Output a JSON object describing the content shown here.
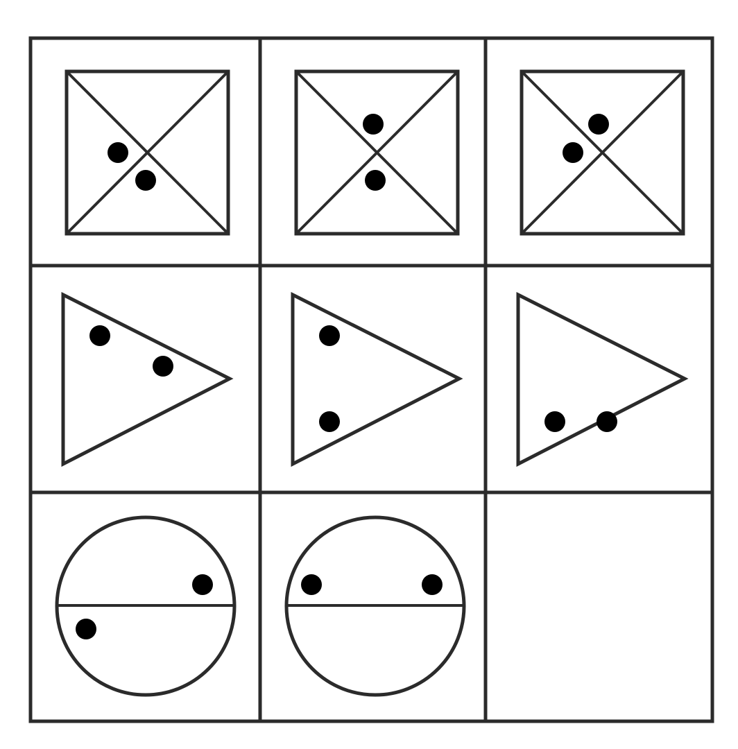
{
  "puzzle": {
    "rows": [
      {
        "shape": "square-with-diagonals",
        "cells": [
          {
            "dots": [
              "left-wedge",
              "bottom-wedge"
            ]
          },
          {
            "dots": [
              "top-wedge",
              "bottom-wedge"
            ]
          },
          {
            "dots": [
              "top-wedge",
              "left-wedge"
            ]
          }
        ]
      },
      {
        "shape": "right-pointing-triangle",
        "cells": [
          {
            "dots": [
              "upper-left",
              "upper-middle"
            ]
          },
          {
            "dots": [
              "upper-left",
              "lower-left"
            ]
          },
          {
            "dots": [
              "lower-middle",
              "lower-left"
            ]
          }
        ]
      },
      {
        "shape": "circle-with-horizontal-divider",
        "cells": [
          {
            "dots": [
              "upper-right",
              "lower-left"
            ]
          },
          {
            "dots": [
              "upper-left",
              "upper-right"
            ]
          },
          {
            "missing": true
          }
        ]
      }
    ]
  },
  "colors": {
    "stroke": "#2b2b2b",
    "dot": "#000000",
    "background": "#ffffff"
  }
}
